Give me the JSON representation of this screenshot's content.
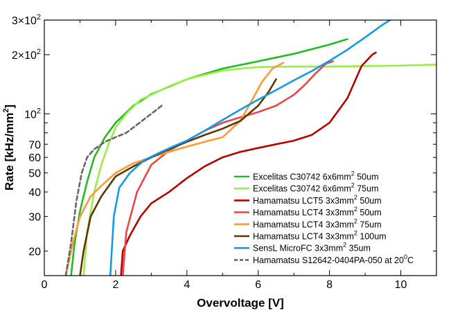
{
  "chart_data": {
    "type": "line",
    "title": "",
    "xlabel": "Overvoltage [V]",
    "ylabel": "Rate [kHz/mm2]",
    "xlim": [
      0,
      11
    ],
    "ylim": [
      15,
      300
    ],
    "yscale": "log",
    "x_ticks": [
      {
        "value": 0,
        "label": "0"
      },
      {
        "value": 2,
        "label": "2"
      },
      {
        "value": 4,
        "label": "4"
      },
      {
        "value": 6,
        "label": "6"
      },
      {
        "value": 8,
        "label": "8"
      },
      {
        "value": 10,
        "label": "10"
      }
    ],
    "y_ticks": [
      {
        "value": 20,
        "label": "20"
      },
      {
        "value": 30,
        "label": "30"
      },
      {
        "value": 40,
        "label": "40"
      },
      {
        "value": 50,
        "label": "50"
      },
      {
        "value": 60,
        "label": "60"
      },
      {
        "value": 70,
        "label": "70"
      }
    ],
    "y_tick_exponents": [
      {
        "value": 100,
        "mantissa": "10",
        "exponent": "2"
      },
      {
        "value": 200,
        "mantissa": "2×10",
        "exponent": "2"
      },
      {
        "value": 300,
        "mantissa": "3×10",
        "exponent": "2"
      }
    ],
    "legend_position": "bottom-right",
    "series": [
      {
        "name": "Excelitas C30742 6x6mm",
        "name_sup": "2",
        "name_suffix": " 50um",
        "color": "#22bb22",
        "dash": false,
        "x": [
          0.75,
          0.85,
          1.0,
          1.2,
          1.4,
          1.7,
          2.0,
          2.5,
          3.0,
          4.0,
          5.0,
          6.0,
          7.0,
          8.0,
          8.5
        ],
        "y": [
          15,
          22,
          32,
          45,
          60,
          76,
          90,
          110,
          126,
          150,
          170,
          185,
          202,
          225,
          240
        ]
      },
      {
        "name": "Excelitas C30742 6x6mm",
        "name_sup": "2",
        "name_suffix": " 75um",
        "color": "#99ee44",
        "dash": false,
        "x": [
          1.1,
          1.2,
          1.4,
          1.6,
          1.8,
          2.0,
          2.3,
          2.7,
          3.0,
          3.5,
          4.0,
          4.5,
          5.0,
          5.5,
          6.0,
          7.0,
          8.0,
          9.0,
          10.0,
          11.0
        ],
        "y": [
          15,
          25,
          40,
          55,
          70,
          85,
          100,
          118,
          125,
          138,
          150,
          158,
          166,
          170,
          173,
          174,
          174,
          175,
          176,
          178
        ]
      },
      {
        "name": "Hamamatsu LCT5 3x3mm",
        "name_sup": "2",
        "name_suffix": " 50um",
        "color": "#bb0000",
        "dash": false,
        "x": [
          2.15,
          2.2,
          2.4,
          2.7,
          3.0,
          3.5,
          4.0,
          4.5,
          5.0,
          5.5,
          6.0,
          6.5,
          7.0,
          7.5,
          8.0,
          8.5,
          8.9,
          9.2,
          9.3
        ],
        "y": [
          15,
          20,
          24,
          30,
          35,
          40,
          47,
          54,
          60,
          64,
          67,
          70,
          73,
          78,
          90,
          120,
          175,
          200,
          205
        ]
      },
      {
        "name": "Hamamatsu LCT4 3x3mm",
        "name_sup": "2",
        "name_suffix": " 50um",
        "color": "#ee4444",
        "dash": false,
        "x": [
          2.2,
          2.3,
          2.6,
          3.0,
          3.5,
          4.0,
          4.5,
          5.0,
          5.5,
          6.0,
          6.5,
          7.0,
          7.3,
          7.6,
          7.9,
          8.1
        ],
        "y": [
          15,
          25,
          40,
          55,
          65,
          73,
          82,
          90,
          96,
          102,
          110,
          125,
          140,
          160,
          180,
          185
        ]
      },
      {
        "name": "Hamamatsu LCT4 3x3mm",
        "name_sup": "2",
        "name_suffix": " 75um",
        "color": "#ff9933",
        "dash": false,
        "x": [
          0.6,
          0.8,
          1.0,
          1.3,
          1.6,
          2.0,
          2.5,
          3.0,
          3.5,
          4.0,
          4.5,
          5.0,
          5.5,
          5.8,
          6.1,
          6.4,
          6.7
        ],
        "y": [
          15,
          22,
          30,
          38,
          43,
          50,
          56,
          60,
          64,
          68,
          72,
          76,
          92,
          115,
          145,
          170,
          182
        ]
      },
      {
        "name": "Hamamatsu LCT4 3x3mm",
        "name_sup": "2",
        "name_suffix": " 100um",
        "color": "#663300",
        "dash": false,
        "x": [
          1.0,
          1.1,
          1.3,
          1.6,
          2.0,
          2.5,
          3.0,
          3.5,
          4.0,
          4.5,
          5.0,
          5.5,
          6.0,
          6.3,
          6.5
        ],
        "y": [
          15,
          20,
          30,
          38,
          48,
          54,
          60,
          66,
          72,
          78,
          84,
          92,
          110,
          130,
          150
        ]
      },
      {
        "name": "SensL MicroFC 3x3mm",
        "name_sup": "2",
        "name_suffix": " 35um",
        "color": "#1199ee",
        "dash": false,
        "x": [
          1.85,
          1.95,
          2.1,
          2.4,
          2.8,
          3.2,
          3.6,
          4.0,
          4.5,
          5.0,
          5.5,
          6.0,
          6.5,
          7.0,
          7.5,
          8.0,
          8.5,
          9.0,
          9.5,
          9.7
        ],
        "y": [
          15,
          30,
          42,
          50,
          58,
          63,
          68,
          73,
          82,
          93,
          105,
          118,
          132,
          148,
          165,
          186,
          212,
          245,
          285,
          300
        ]
      },
      {
        "name": "Hamamatsu S12642-0404PA-050 at 20",
        "name_sup": "0",
        "name_suffix": "C",
        "color": "#666666",
        "dash": true,
        "x": [
          0.6,
          0.75,
          0.9,
          1.05,
          1.2,
          1.4,
          1.7,
          2.0,
          2.3,
          2.6,
          3.0,
          3.35
        ],
        "y": [
          15,
          22,
          36,
          50,
          60,
          66,
          72,
          76,
          80,
          88,
          100,
          112
        ]
      }
    ]
  }
}
